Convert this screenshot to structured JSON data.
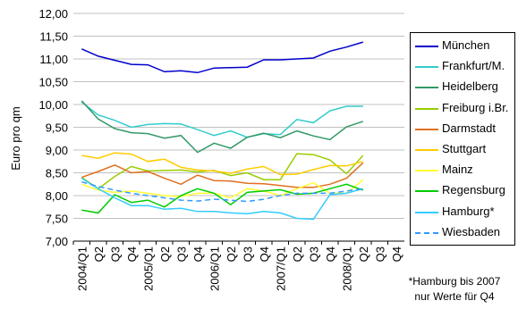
{
  "chart_data": {
    "type": "line",
    "title": "",
    "ylabel": "Euro pro qm",
    "xlabel": "",
    "ylim": [
      7.0,
      12.0
    ],
    "ytick_step": 0.5,
    "ytick_labels": [
      "7,00",
      "7,50",
      "8,00",
      "8,50",
      "9,00",
      "9,50",
      "10,00",
      "10,50",
      "11,00",
      "11,50",
      "12,00"
    ],
    "grid": "horizontal",
    "legend_position": "right",
    "categories": [
      "2004/Q1",
      "Q2",
      "Q3",
      "Q4",
      "2005/Q1",
      "Q2",
      "Q3",
      "Q4",
      "2006/Q1",
      "Q2",
      "Q3",
      "Q4",
      "2007/Q1",
      "Q2",
      "Q3",
      "Q4",
      "2008/Q1",
      "Q2",
      "Q3",
      "Q4"
    ],
    "series": [
      {
        "name": "München",
        "color": "#0000cc",
        "dash": "solid",
        "values": [
          11.22,
          11.06,
          10.97,
          10.88,
          10.87,
          10.72,
          10.74,
          10.7,
          10.8,
          10.81,
          10.82,
          10.98,
          10.98,
          11.0,
          11.02,
          11.17,
          11.26,
          11.37,
          null,
          null
        ]
      },
      {
        "name": "Frankfurt/M.",
        "color": "#33cccc",
        "dash": "solid",
        "values": [
          10.05,
          9.77,
          9.65,
          9.5,
          9.56,
          9.58,
          9.57,
          9.45,
          9.32,
          9.42,
          9.28,
          9.36,
          9.34,
          9.67,
          9.6,
          9.86,
          9.96,
          9.96,
          null,
          null
        ]
      },
      {
        "name": "Heidelberg",
        "color": "#339966",
        "dash": "solid",
        "values": [
          10.08,
          9.68,
          9.47,
          9.38,
          9.36,
          9.26,
          9.32,
          8.95,
          9.15,
          9.04,
          9.28,
          9.37,
          9.27,
          9.42,
          9.31,
          9.23,
          9.51,
          9.63,
          null,
          null
        ]
      },
      {
        "name": "Freiburg i.Br.",
        "color": "#99cc00",
        "dash": "solid",
        "values": [
          8.4,
          8.15,
          8.42,
          8.64,
          8.54,
          8.55,
          8.56,
          8.52,
          8.55,
          8.44,
          8.5,
          8.35,
          8.35,
          8.92,
          8.9,
          8.78,
          8.48,
          8.88,
          null,
          null
        ]
      },
      {
        "name": "Darmstadt",
        "color": "#e07020",
        "dash": "solid",
        "values": [
          8.4,
          8.53,
          8.67,
          8.5,
          8.53,
          8.38,
          8.25,
          8.45,
          8.33,
          8.32,
          8.27,
          8.26,
          8.22,
          8.18,
          8.18,
          8.25,
          8.38,
          8.72,
          null,
          null
        ]
      },
      {
        "name": "Stuttgart",
        "color": "#ffcc00",
        "dash": "solid",
        "values": [
          8.88,
          8.82,
          8.94,
          8.91,
          8.75,
          8.8,
          8.62,
          8.56,
          8.54,
          8.49,
          8.58,
          8.64,
          8.46,
          8.47,
          8.57,
          8.66,
          8.65,
          8.75,
          null,
          null
        ]
      },
      {
        "name": "Mainz",
        "color": "#ffff33",
        "dash": "solid",
        "values": [
          8.25,
          8.12,
          8.07,
          8.1,
          8.05,
          8.0,
          7.98,
          8.05,
          8.05,
          7.95,
          8.15,
          8.1,
          8.0,
          8.15,
          8.28,
          8.05,
          8.05,
          8.35,
          null,
          null
        ]
      },
      {
        "name": "Regensburg",
        "color": "#00cc00",
        "dash": "solid",
        "values": [
          7.68,
          7.62,
          8.02,
          7.85,
          7.9,
          7.75,
          8.0,
          8.15,
          8.05,
          7.8,
          8.07,
          8.1,
          8.13,
          8.03,
          8.05,
          8.15,
          8.25,
          8.12,
          null,
          null
        ]
      },
      {
        "name": "Hamburg*",
        "color": "#33ccff",
        "dash": "solid",
        "values": [
          8.38,
          8.15,
          7.95,
          7.78,
          7.78,
          7.7,
          7.72,
          7.65,
          7.65,
          7.62,
          7.6,
          7.65,
          7.62,
          7.5,
          7.48,
          8.02,
          8.05,
          8.15,
          null,
          null
        ]
      },
      {
        "name": "Wiesbaden",
        "color": "#3399ff",
        "dash": "dashed",
        "values": [
          8.3,
          8.2,
          8.12,
          8.05,
          8.0,
          7.95,
          7.9,
          7.88,
          7.92,
          7.9,
          7.87,
          7.92,
          8.0,
          8.05,
          8.05,
          8.05,
          8.1,
          8.15,
          null,
          null
        ]
      }
    ],
    "footnote": [
      "*Hamburg bis 2007",
      "nur Werte für Q4"
    ]
  }
}
